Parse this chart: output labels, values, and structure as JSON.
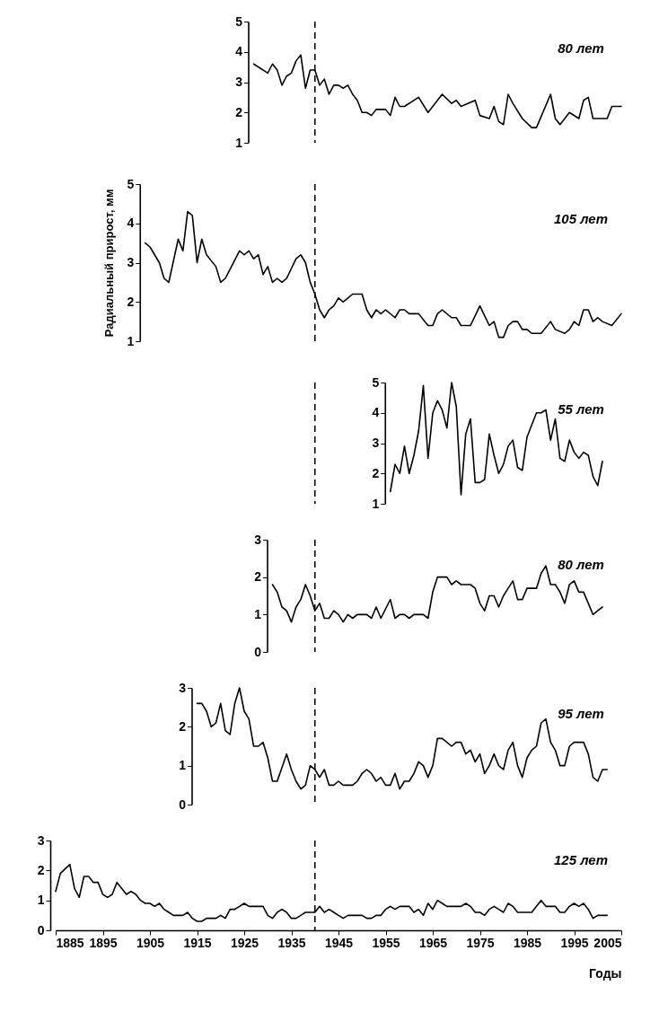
{
  "chart_data": [
    {
      "type": "line",
      "xlim": [
        1885,
        2005
      ],
      "xticks": [
        1885,
        1895,
        1905,
        1915,
        1925,
        1935,
        1945,
        1955,
        1965,
        1975,
        1985,
        1995,
        2005
      ],
      "ylim": [
        1,
        5
      ],
      "yticks": [
        1,
        2,
        3,
        4,
        5
      ],
      "tick_labels": "y",
      "ref_lines": [
        {
          "axis": "x",
          "value": 1940,
          "line_style": "dashed"
        }
      ],
      "x": [
        1927,
        1930,
        1931,
        1932,
        1933,
        1934,
        1935,
        1936,
        1937,
        1938,
        1939,
        1940,
        1941,
        1942,
        1943,
        1944,
        1945,
        1946,
        1947,
        1948,
        1949,
        1950,
        1951,
        1952,
        1953,
        1955,
        1956,
        1957,
        1958,
        1959,
        1962,
        1964,
        1967,
        1969,
        1970,
        1971,
        1974,
        1975,
        1977,
        1978,
        1979,
        1980,
        1981,
        1982,
        1984,
        1986,
        1987,
        1990,
        1991,
        1992,
        1994,
        1996,
        1997,
        1998,
        1999,
        2002,
        2003,
        2005
      ],
      "series": [
        {
          "name": "80 лет",
          "color": "#000000",
          "values": [
            3.6,
            3.3,
            3.6,
            3.4,
            2.9,
            3.2,
            3.3,
            3.7,
            3.9,
            2.8,
            3.4,
            3.4,
            2.9,
            3.1,
            2.6,
            2.9,
            2.9,
            2.8,
            2.9,
            2.6,
            2.4,
            2.0,
            2.0,
            1.9,
            2.1,
            2.1,
            1.9,
            2.5,
            2.2,
            2.2,
            2.5,
            2.0,
            2.6,
            2.3,
            2.4,
            2.2,
            2.4,
            1.9,
            1.8,
            2.2,
            1.7,
            1.6,
            2.6,
            2.3,
            1.8,
            1.5,
            1.5,
            2.6,
            1.8,
            1.6,
            2.0,
            1.8,
            2.4,
            2.5,
            1.8,
            1.8,
            2.2,
            2.2
          ]
        }
      ]
    },
    {
      "type": "line",
      "ylabel": "Радиальный прирост, мм",
      "xlim": [
        1885,
        2005
      ],
      "xticks": [
        1885,
        1895,
        1905,
        1915,
        1925,
        1935,
        1945,
        1955,
        1965,
        1975,
        1985,
        1995,
        2005
      ],
      "ylim": [
        1,
        5
      ],
      "yticks": [
        1,
        2,
        3,
        4,
        5
      ],
      "tick_labels": "y",
      "ref_lines": [
        {
          "axis": "x",
          "value": 1940,
          "line_style": "dashed"
        }
      ],
      "x": [
        1904,
        1905,
        1907,
        1908,
        1909,
        1911,
        1912,
        1913,
        1914,
        1915,
        1916,
        1917,
        1919,
        1920,
        1921,
        1924,
        1925,
        1926,
        1927,
        1928,
        1929,
        1930,
        1931,
        1932,
        1933,
        1934,
        1936,
        1937,
        1938,
        1939,
        1940,
        1941,
        1942,
        1943,
        1944,
        1945,
        1946,
        1947,
        1948,
        1950,
        1951,
        1952,
        1953,
        1954,
        1955,
        1957,
        1958,
        1959,
        1960,
        1962,
        1964,
        1965,
        1966,
        1967,
        1969,
        1970,
        1971,
        1973,
        1975,
        1977,
        1978,
        1979,
        1980,
        1981,
        1982,
        1983,
        1984,
        1985,
        1986,
        1988,
        1990,
        1991,
        1993,
        1994,
        1995,
        1996,
        1997,
        1998,
        1999,
        2000,
        2001,
        2003,
        2005
      ],
      "series": [
        {
          "name": "105 лет",
          "color": "#000000",
          "values": [
            3.5,
            3.4,
            3.0,
            2.6,
            2.5,
            3.6,
            3.3,
            4.3,
            4.2,
            3.0,
            3.6,
            3.2,
            2.9,
            2.5,
            2.6,
            3.3,
            3.2,
            3.3,
            3.1,
            3.2,
            2.7,
            2.9,
            2.5,
            2.6,
            2.5,
            2.6,
            3.1,
            3.2,
            3.0,
            2.5,
            2.2,
            1.8,
            1.6,
            1.8,
            1.9,
            2.1,
            2.0,
            2.1,
            2.2,
            2.2,
            1.8,
            1.6,
            1.8,
            1.7,
            1.8,
            1.6,
            1.8,
            1.8,
            1.7,
            1.7,
            1.4,
            1.4,
            1.7,
            1.8,
            1.6,
            1.6,
            1.4,
            1.4,
            1.9,
            1.4,
            1.5,
            1.1,
            1.1,
            1.4,
            1.5,
            1.5,
            1.3,
            1.3,
            1.2,
            1.2,
            1.5,
            1.3,
            1.2,
            1.3,
            1.5,
            1.4,
            1.8,
            1.8,
            1.5,
            1.6,
            1.5,
            1.4,
            1.7
          ]
        }
      ]
    },
    {
      "type": "line",
      "xlim": [
        1885,
        2005
      ],
      "xticks": [
        1885,
        1895,
        1905,
        1915,
        1925,
        1935,
        1945,
        1955,
        1965,
        1975,
        1985,
        1995,
        2005
      ],
      "ylim": [
        1,
        5
      ],
      "yticks": [
        1,
        2,
        3,
        4,
        5
      ],
      "tick_labels": "y",
      "ref_lines": [
        {
          "axis": "x",
          "value": 1940,
          "line_style": "dashed"
        }
      ],
      "x": [
        1956,
        1957,
        1958,
        1959,
        1960,
        1961,
        1962,
        1963,
        1964,
        1965,
        1966,
        1967,
        1968,
        1969,
        1970,
        1971,
        1972,
        1973,
        1974,
        1975,
        1976,
        1977,
        1978,
        1979,
        1980,
        1981,
        1982,
        1983,
        1984,
        1985,
        1986,
        1987,
        1988,
        1989,
        1990,
        1991,
        1992,
        1993,
        1994,
        1995,
        1996,
        1997,
        1998,
        1999,
        2000,
        2001
      ],
      "series": [
        {
          "name": "55 лет",
          "color": "#000000",
          "values": [
            1.4,
            2.3,
            2.0,
            2.9,
            2.0,
            2.6,
            3.4,
            4.9,
            2.5,
            4.0,
            4.4,
            4.1,
            3.5,
            5.0,
            4.2,
            1.3,
            3.3,
            3.8,
            1.7,
            1.7,
            1.8,
            3.3,
            2.6,
            2.0,
            2.3,
            2.9,
            3.1,
            2.2,
            2.1,
            3.2,
            3.6,
            4.0,
            4.0,
            4.1,
            3.1,
            3.8,
            2.5,
            2.4,
            3.1,
            2.7,
            2.5,
            2.7,
            2.6,
            1.9,
            1.6,
            2.4
          ]
        }
      ]
    },
    {
      "type": "line",
      "xlim": [
        1885,
        2005
      ],
      "xticks": [
        1885,
        1895,
        1905,
        1915,
        1925,
        1935,
        1945,
        1955,
        1965,
        1975,
        1985,
        1995,
        2005
      ],
      "ylim": [
        0,
        3
      ],
      "yticks": [
        0,
        1,
        2,
        3
      ],
      "tick_labels": "y",
      "ref_lines": [
        {
          "axis": "x",
          "value": 1940,
          "line_style": "dashed"
        }
      ],
      "x": [
        1931,
        1932,
        1933,
        1934,
        1935,
        1936,
        1937,
        1938,
        1939,
        1940,
        1941,
        1942,
        1943,
        1944,
        1945,
        1946,
        1947,
        1948,
        1949,
        1951,
        1952,
        1953,
        1954,
        1956,
        1957,
        1958,
        1959,
        1960,
        1961,
        1963,
        1964,
        1965,
        1966,
        1967,
        1968,
        1969,
        1970,
        1971,
        1973,
        1974,
        1975,
        1976,
        1977,
        1978,
        1979,
        1980,
        1981,
        1982,
        1983,
        1984,
        1985,
        1986,
        1987,
        1988,
        1989,
        1990,
        1991,
        1992,
        1993,
        1994,
        1995,
        1996,
        1997,
        1998,
        1999,
        2000,
        2001
      ],
      "series": [
        {
          "name": "80 лет",
          "color": "#000000",
          "values": [
            1.8,
            1.6,
            1.2,
            1.1,
            0.8,
            1.2,
            1.4,
            1.8,
            1.5,
            1.1,
            1.3,
            0.9,
            0.9,
            1.1,
            1.0,
            0.8,
            1.0,
            0.9,
            1.0,
            1.0,
            0.9,
            1.2,
            0.9,
            1.4,
            0.9,
            1.0,
            1.0,
            0.9,
            1.0,
            1.0,
            0.9,
            1.6,
            2.0,
            2.0,
            2.0,
            1.8,
            1.9,
            1.8,
            1.8,
            1.7,
            1.3,
            1.1,
            1.5,
            1.5,
            1.2,
            1.5,
            1.7,
            1.9,
            1.4,
            1.4,
            1.7,
            1.7,
            1.7,
            2.1,
            2.3,
            1.8,
            1.8,
            1.6,
            1.3,
            1.8,
            1.9,
            1.6,
            1.6,
            1.3,
            1.0,
            1.1,
            1.2
          ]
        }
      ]
    },
    {
      "type": "line",
      "xlim": [
        1885,
        2005
      ],
      "xticks": [
        1885,
        1895,
        1905,
        1915,
        1925,
        1935,
        1945,
        1955,
        1965,
        1975,
        1985,
        1995,
        2005
      ],
      "ylim": [
        0,
        3
      ],
      "yticks": [
        0,
        1,
        2,
        3
      ],
      "tick_labels": "y",
      "ref_lines": [
        {
          "axis": "x",
          "value": 1940,
          "line_style": "dashed"
        }
      ],
      "x": [
        1915,
        1916,
        1917,
        1918,
        1919,
        1920,
        1921,
        1922,
        1923,
        1924,
        1925,
        1926,
        1927,
        1928,
        1929,
        1930,
        1931,
        1932,
        1934,
        1935,
        1936,
        1937,
        1938,
        1939,
        1940,
        1941,
        1942,
        1943,
        1944,
        1945,
        1946,
        1948,
        1949,
        1950,
        1951,
        1952,
        1953,
        1954,
        1955,
        1956,
        1957,
        1958,
        1959,
        1960,
        1961,
        1962,
        1963,
        1964,
        1965,
        1966,
        1967,
        1968,
        1969,
        1970,
        1971,
        1972,
        1973,
        1974,
        1975,
        1976,
        1977,
        1978,
        1979,
        1980,
        1981,
        1982,
        1983,
        1984,
        1985,
        1986,
        1987,
        1988,
        1989,
        1990,
        1991,
        1992,
        1993,
        1994,
        1995,
        1997,
        1998,
        1999,
        2000,
        2001,
        2002
      ],
      "series": [
        {
          "name": "95 лет",
          "color": "#000000",
          "values": [
            2.6,
            2.6,
            2.4,
            2.0,
            2.1,
            2.6,
            1.9,
            1.8,
            2.6,
            3.0,
            2.4,
            2.2,
            1.5,
            1.5,
            1.6,
            1.2,
            0.6,
            0.6,
            1.3,
            0.9,
            0.6,
            0.4,
            0.5,
            1.0,
            0.9,
            0.7,
            0.9,
            0.5,
            0.5,
            0.6,
            0.5,
            0.5,
            0.6,
            0.8,
            0.9,
            0.8,
            0.6,
            0.7,
            0.5,
            0.5,
            0.8,
            0.4,
            0.6,
            0.6,
            0.8,
            1.1,
            1.0,
            0.7,
            1.0,
            1.7,
            1.7,
            1.6,
            1.5,
            1.6,
            1.6,
            1.3,
            1.4,
            1.1,
            1.3,
            0.8,
            1.0,
            1.3,
            1.0,
            0.9,
            1.4,
            1.6,
            1.0,
            0.7,
            1.2,
            1.4,
            1.5,
            2.1,
            2.2,
            1.6,
            1.4,
            1.0,
            1.0,
            1.5,
            1.6,
            1.6,
            1.3,
            0.7,
            0.6,
            0.9,
            0.9
          ]
        }
      ]
    },
    {
      "type": "line",
      "xlabel": "Годы",
      "xlim": [
        1885,
        2005
      ],
      "xticks": [
        1885,
        1895,
        1905,
        1915,
        1925,
        1935,
        1945,
        1955,
        1965,
        1975,
        1985,
        1995,
        2005
      ],
      "ylim": [
        0,
        3
      ],
      "yticks": [
        0,
        1,
        2,
        3
      ],
      "ref_lines": [
        {
          "axis": "x",
          "value": 1940,
          "line_style": "dashed"
        }
      ],
      "x": [
        1885,
        1886,
        1888,
        1889,
        1890,
        1891,
        1892,
        1893,
        1894,
        1895,
        1896,
        1897,
        1898,
        1899,
        1900,
        1901,
        1902,
        1903,
        1904,
        1905,
        1906,
        1907,
        1908,
        1909,
        1910,
        1912,
        1913,
        1914,
        1915,
        1916,
        1917,
        1919,
        1920,
        1921,
        1922,
        1923,
        1924,
        1925,
        1926,
        1929,
        1930,
        1931,
        1932,
        1933,
        1934,
        1935,
        1936,
        1937,
        1938,
        1940,
        1941,
        1942,
        1943,
        1944,
        1945,
        1946,
        1947,
        1948,
        1950,
        1951,
        1952,
        1953,
        1954,
        1955,
        1956,
        1957,
        1958,
        1960,
        1961,
        1962,
        1963,
        1964,
        1965,
        1966,
        1967,
        1968,
        1971,
        1972,
        1973,
        1974,
        1975,
        1976,
        1977,
        1978,
        1979,
        1980,
        1981,
        1982,
        1983,
        1986,
        1987,
        1988,
        1989,
        1991,
        1992,
        1993,
        1994,
        1995,
        1996,
        1997,
        1998,
        1999,
        2000,
        2002
      ],
      "series": [
        {
          "name": "125 лет",
          "color": "#000000",
          "values": [
            1.3,
            1.9,
            2.2,
            1.4,
            1.1,
            1.8,
            1.8,
            1.6,
            1.6,
            1.2,
            1.1,
            1.2,
            1.6,
            1.4,
            1.2,
            1.3,
            1.2,
            1.0,
            0.9,
            0.9,
            0.8,
            0.9,
            0.7,
            0.6,
            0.5,
            0.5,
            0.6,
            0.4,
            0.3,
            0.3,
            0.4,
            0.4,
            0.5,
            0.4,
            0.7,
            0.7,
            0.8,
            0.9,
            0.8,
            0.8,
            0.5,
            0.4,
            0.6,
            0.7,
            0.6,
            0.4,
            0.4,
            0.5,
            0.6,
            0.6,
            0.8,
            0.6,
            0.7,
            0.6,
            0.5,
            0.4,
            0.5,
            0.5,
            0.5,
            0.4,
            0.4,
            0.5,
            0.5,
            0.7,
            0.8,
            0.7,
            0.8,
            0.8,
            0.6,
            0.7,
            0.5,
            0.9,
            0.7,
            1.0,
            0.9,
            0.8,
            0.8,
            0.9,
            0.8,
            0.6,
            0.6,
            0.5,
            0.7,
            0.8,
            0.7,
            0.6,
            0.9,
            0.8,
            0.6,
            0.6,
            0.8,
            1.0,
            0.8,
            0.8,
            0.6,
            0.6,
            0.8,
            0.9,
            0.8,
            0.9,
            0.7,
            0.4,
            0.5,
            0.5
          ]
        }
      ]
    }
  ]
}
